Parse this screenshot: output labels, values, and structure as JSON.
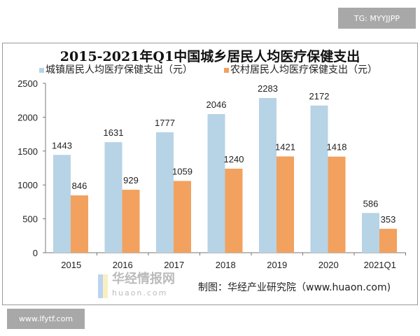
{
  "tags": {
    "top_right": "TG: MYYJJPP",
    "bottom_left": "www.lfytf.com"
  },
  "watermark": {
    "cn": "华经情报网",
    "en": "huaon.com"
  },
  "source": "制图：华经产业研究院（www.huaon.com)",
  "colors": {
    "urban": "#b7d3e6",
    "rural": "#f2a15e"
  },
  "chart_data": {
    "type": "bar",
    "title": "2015-2021年Q1中国城乡居民人均医疗保健支出",
    "categories": [
      "2015",
      "2016",
      "2017",
      "2018",
      "2019",
      "2020",
      "2021Q1"
    ],
    "series": [
      {
        "name": "城镇居民人均医疗保健支出（元）",
        "values": [
          1443,
          1631,
          1777,
          2046,
          2283,
          2172,
          586
        ]
      },
      {
        "name": "农村居民人均医疗保健支出（元）",
        "values": [
          846,
          929,
          1059,
          1240,
          1421,
          1418,
          353
        ]
      }
    ],
    "ylim": [
      0,
      2500
    ],
    "yticks": [
      "0",
      "500",
      "1000",
      "1500",
      "2000",
      "2500"
    ],
    "grid": false,
    "legend": "top"
  }
}
